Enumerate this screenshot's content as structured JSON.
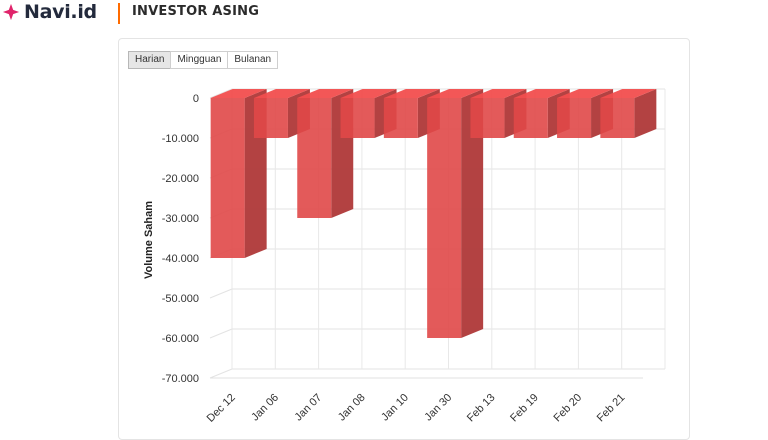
{
  "header": {
    "logo_text": "Navi.id",
    "page_title": "INVESTOR ASING",
    "accent_color": "#ff6b00",
    "logo_star_color": "#e0246b"
  },
  "tabs": [
    {
      "label": "Harian",
      "active": true
    },
    {
      "label": "Mingguan",
      "active": false
    },
    {
      "label": "Bulanan",
      "active": false
    }
  ],
  "chart_data": {
    "type": "bar",
    "title": "",
    "xlabel": "",
    "ylabel": "Volume Saham",
    "ylim": [
      -70000,
      0
    ],
    "yticks": [
      0,
      -10000,
      -20000,
      -30000,
      -40000,
      -50000,
      -60000,
      -70000
    ],
    "ytick_labels": [
      "0",
      "-10.000",
      "-20.000",
      "-30.000",
      "-40.000",
      "-50.000",
      "-60.000",
      "-70.000"
    ],
    "categories": [
      "Dec 12",
      "Jan 06",
      "Jan 07",
      "Jan 08",
      "Jan 10",
      "Jan 30",
      "Feb 13",
      "Feb 19",
      "Feb 20",
      "Feb 21"
    ],
    "values": [
      -40000,
      -10000,
      -30000,
      -10000,
      -10000,
      -60000,
      -10000,
      -10000,
      -10000,
      -10000
    ],
    "bar_color": "#e04848",
    "grid": true,
    "style": "3d"
  }
}
